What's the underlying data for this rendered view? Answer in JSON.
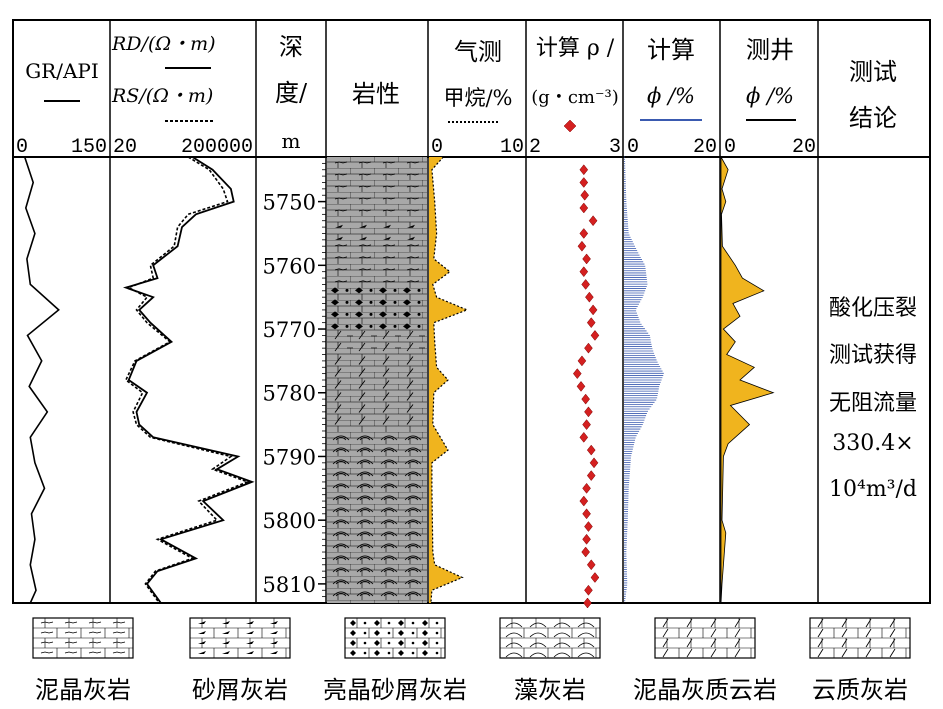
{
  "header": {
    "gr": {
      "title": "GR/API",
      "scale_min": "0",
      "scale_max": "150"
    },
    "res": {
      "rd_label": "RD/(Ω・m)",
      "rs_label": "RS/(Ω・m)",
      "scale_min": "20",
      "scale_max": "200000"
    },
    "depth": {
      "line1": "深",
      "line2": "度/",
      "line3": "m"
    },
    "lith": {
      "title": "岩性"
    },
    "gas": {
      "line1": "气测",
      "line2": "甲烷/%",
      "scale_min": "0",
      "scale_max": "10"
    },
    "rho": {
      "line1": "计算 ρ /",
      "line2": "(g・cm⁻³)",
      "scale_min": "2",
      "scale_max": "3"
    },
    "phic": {
      "line1": "计算",
      "line2": "ϕ /%",
      "scale_min": "0",
      "scale_max": "20"
    },
    "phil": {
      "line1": "测井",
      "line2": "ϕ /%",
      "scale_min": "0",
      "scale_max": "20"
    },
    "concl": {
      "line1": "测试",
      "line2": "结论"
    }
  },
  "conclusion": [
    "酸化压裂",
    "测试获得",
    "无阻流量",
    "330.4×",
    "10⁴m³/d"
  ],
  "depth_ticks": [
    "5750",
    "5760",
    "5770",
    "5780",
    "5790",
    "5800",
    "5810"
  ],
  "legend": [
    {
      "label": "泥晶灰岩",
      "pattern": "mudstone"
    },
    {
      "label": "砂屑灰岩",
      "pattern": "sandy"
    },
    {
      "label": "亮晶砂屑灰岩",
      "pattern": "sparry"
    },
    {
      "label": "藻灰岩",
      "pattern": "algal"
    },
    {
      "label": "泥晶灰质云岩",
      "pattern": "calc-dolo"
    },
    {
      "label": "云质灰岩",
      "pattern": "dolo-lime"
    }
  ],
  "colors": {
    "gas_fill": "#f0b41e",
    "rho_marker": "#d42020",
    "phic_line": "#3a5ab0",
    "phil_fill": "#f0b41e",
    "lith_bg": "#a8a8a8"
  },
  "chart_data": {
    "type": "well-log",
    "depth_range": [
      5743,
      5813
    ],
    "depth_ticks": [
      5750,
      5760,
      5770,
      5780,
      5790,
      5800,
      5810
    ],
    "lithology": [
      {
        "top": 5743,
        "base": 5753,
        "rock": "泥晶灰岩"
      },
      {
        "top": 5753,
        "base": 5756,
        "rock": "砂屑灰岩"
      },
      {
        "top": 5756,
        "base": 5763,
        "rock": "泥晶灰岩"
      },
      {
        "top": 5763,
        "base": 5770,
        "rock": "亮晶砂屑灰岩"
      },
      {
        "top": 5770,
        "base": 5774,
        "rock": "泥晶灰质云岩"
      },
      {
        "top": 5774,
        "base": 5786,
        "rock": "云质灰岩"
      },
      {
        "top": 5786,
        "base": 5813,
        "rock": "藻灰岩"
      }
    ],
    "gr": {
      "range": [
        0,
        150
      ],
      "depth": [
        5743,
        5747,
        5751,
        5755,
        5759,
        5763,
        5767,
        5771,
        5775,
        5779,
        5783,
        5787,
        5791,
        5795,
        5799,
        5803,
        5807,
        5811,
        5813
      ],
      "value": [
        10,
        25,
        12,
        28,
        14,
        20,
        70,
        15,
        40,
        18,
        50,
        20,
        28,
        45,
        22,
        28,
        20,
        30,
        20
      ]
    },
    "rd": {
      "range": [
        20,
        200000
      ],
      "scale": "log",
      "depth": [
        5743,
        5745,
        5748,
        5750,
        5752,
        5754,
        5757,
        5760,
        5762,
        5763.5,
        5765,
        5767,
        5769,
        5772,
        5775,
        5778,
        5780,
        5783,
        5785,
        5787,
        5790,
        5792,
        5794,
        5797,
        5800,
        5803,
        5806,
        5808,
        5810,
        5813
      ],
      "value": [
        4000,
        15000,
        50000,
        60000,
        5000,
        2000,
        1500,
        300,
        400,
        50,
        300,
        120,
        250,
        1000,
        100,
        60,
        200,
        100,
        120,
        300,
        80000,
        20000,
        200000,
        8000,
        30000,
        500,
        5000,
        400,
        200,
        500
      ]
    },
    "rs": {
      "range": [
        20,
        200000
      ],
      "scale": "log",
      "depth": [
        5743,
        5745,
        5748,
        5750,
        5752,
        5754,
        5757,
        5760,
        5762,
        5763.5,
        5765,
        5767,
        5769,
        5772,
        5775,
        5778,
        5780,
        5783,
        5785,
        5787,
        5790,
        5792,
        5794,
        5797,
        5800,
        5803,
        5806,
        5808,
        5810,
        5813
      ],
      "value": [
        3000,
        12000,
        30000,
        40000,
        3000,
        1500,
        1200,
        250,
        300,
        60,
        200,
        100,
        200,
        900,
        90,
        50,
        150,
        80,
        100,
        250,
        50000,
        15000,
        150000,
        6000,
        20000,
        400,
        4000,
        350,
        180,
        450
      ]
    },
    "gas": {
      "range": [
        0,
        10
      ],
      "depth": [
        5743,
        5745,
        5750,
        5755,
        5759,
        5761,
        5763,
        5765,
        5767,
        5769,
        5772,
        5776,
        5778,
        5780,
        5785,
        5789,
        5791,
        5795,
        5805,
        5807,
        5809,
        5811,
        5813
      ],
      "value": [
        1.5,
        0.3,
        0.6,
        0.8,
        0.5,
        2.2,
        0.4,
        0.8,
        4.0,
        0.5,
        0.6,
        0.8,
        2.0,
        0.5,
        0.4,
        2.0,
        0.3,
        0.3,
        0.4,
        0.6,
        3.5,
        0.3,
        0.2
      ]
    },
    "rho": {
      "range": [
        2,
        3
      ],
      "depth": [
        5745,
        5747,
        5749,
        5751,
        5753,
        5755,
        5757,
        5759,
        5761,
        5763,
        5765,
        5767,
        5769,
        5771,
        5773,
        5775,
        5777,
        5779,
        5781,
        5783,
        5785,
        5787,
        5789,
        5791,
        5793,
        5795,
        5797,
        5799,
        5801,
        5803,
        5805,
        5807,
        5809,
        5811,
        5813
      ],
      "value": [
        2.6,
        2.6,
        2.61,
        2.6,
        2.7,
        2.6,
        2.58,
        2.63,
        2.6,
        2.62,
        2.66,
        2.7,
        2.68,
        2.72,
        2.65,
        2.58,
        2.53,
        2.57,
        2.62,
        2.65,
        2.63,
        2.6,
        2.68,
        2.71,
        2.68,
        2.63,
        2.6,
        2.63,
        2.65,
        2.63,
        2.62,
        2.68,
        2.72,
        2.65,
        2.64
      ]
    },
    "phic": {
      "range": [
        0,
        20
      ],
      "depth": [
        5743,
        5750,
        5755,
        5758,
        5760,
        5763,
        5765,
        5767,
        5769,
        5771,
        5773,
        5775,
        5777,
        5779,
        5781,
        5783,
        5785,
        5787,
        5790,
        5795,
        5800,
        5805,
        5810,
        5813
      ],
      "value": [
        0.2,
        0.5,
        1.0,
        3.0,
        4.5,
        5.0,
        4.0,
        2.5,
        3.5,
        5.5,
        6.0,
        7.0,
        8.5,
        7.5,
        7.0,
        5.0,
        4.0,
        2.5,
        1.5,
        1.0,
        0.8,
        0.5,
        0.7,
        0.2
      ]
    },
    "phil": {
      "range": [
        0,
        20
      ],
      "depth": [
        5743,
        5745,
        5748,
        5750,
        5752,
        5757,
        5760,
        5762,
        5764,
        5766,
        5768,
        5770,
        5772,
        5774,
        5776,
        5778,
        5780,
        5782,
        5785,
        5788,
        5790,
        5800,
        5802,
        5810,
        5813
      ],
      "value": [
        0,
        1.5,
        0.2,
        1.0,
        0.1,
        0.3,
        3.0,
        4.5,
        9.0,
        2.5,
        4.0,
        0.5,
        3.0,
        1.2,
        7.0,
        4.0,
        11.0,
        2.0,
        6.0,
        1.5,
        0.5,
        0.2,
        1.0,
        0.2,
        0
      ]
    }
  }
}
